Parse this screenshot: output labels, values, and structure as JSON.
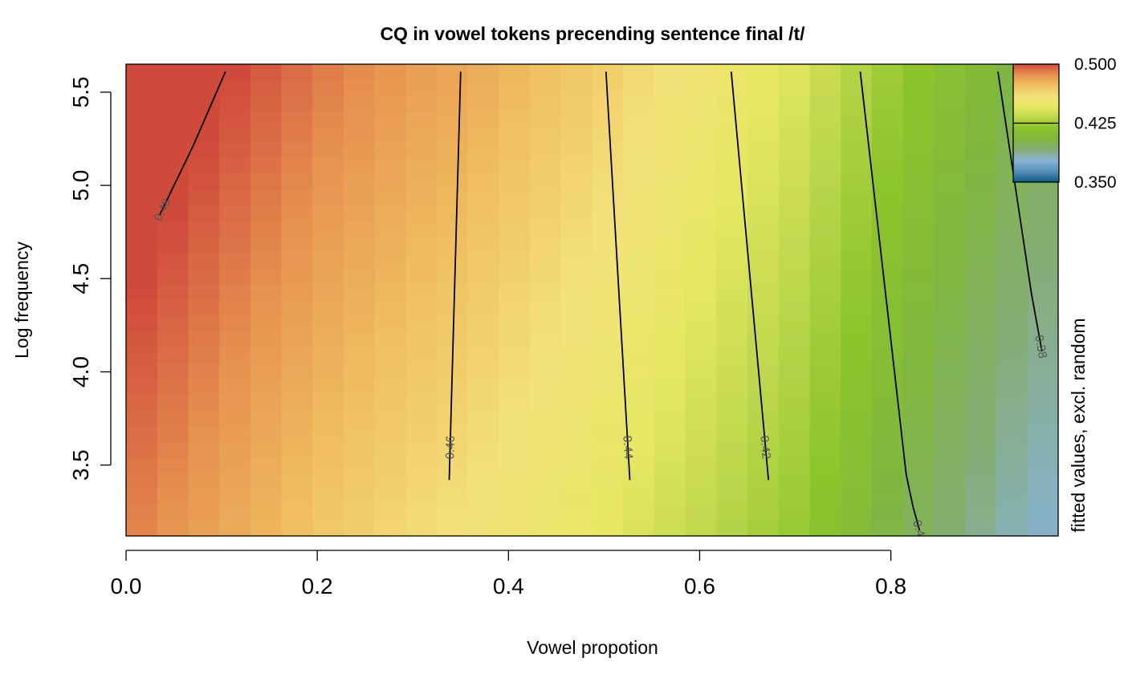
{
  "chart_data": {
    "type": "heatmap",
    "title": "CQ in vowel tokens precending sentence final /t/",
    "xlabel": "Vowel propotion",
    "ylabel": "Log frequency",
    "xlim": [
      0.0,
      0.975
    ],
    "ylim": [
      3.12,
      5.65
    ],
    "x_ticks": [
      0.0,
      0.2,
      0.4,
      0.6,
      0.8
    ],
    "x_tick_labels": [
      "0.0",
      "0.2",
      "0.4",
      "0.6",
      "0.8"
    ],
    "y_ticks": [
      3.5,
      4.0,
      4.5,
      5.0,
      5.5
    ],
    "y_tick_labels": [
      "3.5",
      "4.0",
      "4.5",
      "5.0",
      "5.5"
    ],
    "grid": false,
    "colorbar": {
      "label": "fitted values, excl. random",
      "range": [
        0.35,
        0.5
      ],
      "ticks": [
        0.35,
        0.425,
        0.5
      ],
      "tick_labels": [
        "0.350",
        "0.425",
        "0.500"
      ],
      "placement": "top-right"
    },
    "colors": [
      "#0e5a80",
      "#5590b6",
      "#88b2d6",
      "#85ad78",
      "#7fb73f",
      "#8cc42c",
      "#b9d54b",
      "#e6e762",
      "#f3e27a",
      "#f0c060",
      "#e79350",
      "#d04a3c"
    ],
    "field_model": {
      "x_points": [
        0.0,
        0.2,
        0.3,
        0.35,
        0.5,
        0.6,
        0.7,
        0.8,
        0.95
      ],
      "value_points": [
        0.4905,
        0.4705,
        0.4625,
        0.4595,
        0.446,
        0.4345,
        0.422,
        0.402,
        0.379
      ],
      "log_freq_slope": 0.0085,
      "log_freq_ref": 3.15
    },
    "contours": [
      {
        "level": 0.48,
        "label": "0.48",
        "points": [
          [
            0.035,
            4.84
          ],
          [
            0.07,
            5.21
          ],
          [
            0.104,
            5.61
          ]
        ]
      },
      {
        "level": 0.46,
        "label": "0.46",
        "points": [
          [
            0.338,
            3.42
          ],
          [
            0.35,
            5.61
          ]
        ]
      },
      {
        "level": 0.44,
        "label": "0.44",
        "points": [
          [
            0.527,
            3.42
          ],
          [
            0.502,
            5.61
          ]
        ]
      },
      {
        "level": 0.42,
        "label": "0.42",
        "points": [
          [
            0.672,
            3.42
          ],
          [
            0.633,
            5.61
          ]
        ]
      },
      {
        "level": 0.4,
        "label": "0.4",
        "points": [
          [
            0.83,
            3.15
          ],
          [
            0.823,
            3.28
          ],
          [
            0.816,
            3.45
          ],
          [
            0.768,
            5.61
          ]
        ]
      },
      {
        "level": 0.38,
        "label": "0.38",
        "points": [
          [
            0.958,
            4.11
          ],
          [
            0.947,
            4.42
          ],
          [
            0.912,
            5.61
          ]
        ]
      }
    ]
  }
}
